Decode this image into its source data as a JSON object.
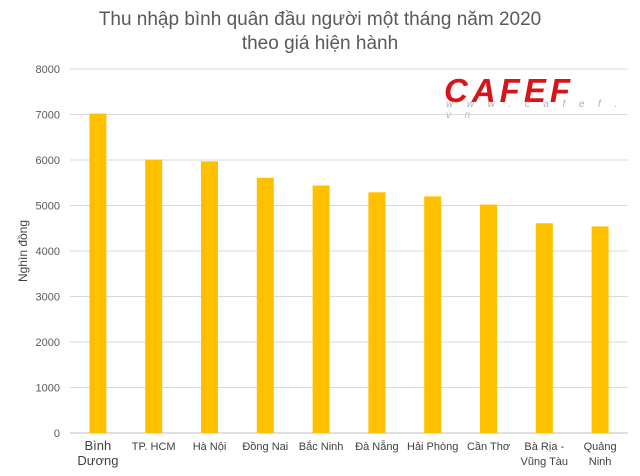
{
  "chart_data": {
    "type": "bar",
    "title": "Thu nhập bình quân đầu người một tháng năm 2020",
    "subtitle": "theo giá hiện hành",
    "ylabel": "Nghìn đồng",
    "xlabel": "",
    "ylim": [
      0,
      8000
    ],
    "yticks": [
      0,
      1000,
      2000,
      3000,
      4000,
      5000,
      6000,
      7000,
      8000
    ],
    "grid": true,
    "bar_color": "#ffc000",
    "categories": [
      [
        "Bình",
        "Dương"
      ],
      [
        "TP. HCM"
      ],
      [
        "Hà Nội"
      ],
      [
        "Đồng Nai"
      ],
      [
        "Bắc Ninh"
      ],
      [
        "Đà Nẵng"
      ],
      [
        "Hải Phòng"
      ],
      [
        "Cần Thơ"
      ],
      [
        "Bà Rịa -",
        "Vũng Tàu"
      ],
      [
        "Quảng",
        "Ninh"
      ]
    ],
    "values": [
      7020,
      6010,
      5970,
      5610,
      5440,
      5290,
      5200,
      5020,
      4610,
      4540
    ]
  },
  "watermark": {
    "brand": "CAFEF",
    "url": "w w w . c a f e f . v n",
    "color": "#d7141a"
  }
}
